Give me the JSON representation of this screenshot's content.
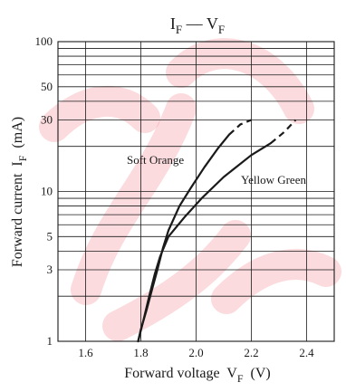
{
  "chart_data": {
    "type": "line",
    "title": {
      "main": "I",
      "main_sub": "F",
      "sep": " — ",
      "second": "V",
      "second_sub": "F"
    },
    "xlabel": {
      "text": "Forward voltage  V",
      "sub": "F",
      "unit": "  (V)"
    },
    "ylabel": {
      "text": "Forward current  I",
      "sub": "F",
      "unit": "  (mA)"
    },
    "xlim": [
      1.5,
      2.5
    ],
    "ylim": [
      1,
      100
    ],
    "yscale": "log",
    "grid": true,
    "x_ticks": [
      1.6,
      1.8,
      2.0,
      2.2,
      2.4
    ],
    "x_tick_labels": [
      "1.6",
      "1.8",
      "2.0",
      "2.2",
      "2.4"
    ],
    "y_ticks": [
      1,
      3,
      5,
      10,
      30,
      50,
      100
    ],
    "y_tick_labels": [
      "1",
      "3",
      "5",
      "10",
      "30",
      "50",
      "100"
    ],
    "series": [
      {
        "name": "Soft Orange",
        "points": [
          [
            1.79,
            1
          ],
          [
            1.8,
            1.2
          ],
          [
            1.82,
            1.6
          ],
          [
            1.84,
            2.2
          ],
          [
            1.86,
            3
          ],
          [
            1.88,
            4.2
          ],
          [
            1.9,
            5.5
          ],
          [
            1.94,
            8
          ],
          [
            1.98,
            10.5
          ],
          [
            2.03,
            14.5
          ],
          [
            2.08,
            19.5
          ],
          [
            2.12,
            24
          ]
        ],
        "dashed_points": [
          [
            2.12,
            24
          ],
          [
            2.16,
            28
          ],
          [
            2.2,
            30
          ]
        ]
      },
      {
        "name": "Yellow Green",
        "points": [
          [
            1.79,
            1
          ],
          [
            1.81,
            1.4
          ],
          [
            1.83,
            2
          ],
          [
            1.85,
            2.8
          ],
          [
            1.87,
            3.7
          ],
          [
            1.9,
            5
          ],
          [
            1.96,
            6.8
          ],
          [
            2.02,
            9
          ],
          [
            2.1,
            12.5
          ],
          [
            2.2,
            17.5
          ],
          [
            2.27,
            21
          ]
        ],
        "dashed_points": [
          [
            2.27,
            21
          ],
          [
            2.32,
            25
          ],
          [
            2.36,
            30
          ]
        ]
      }
    ],
    "colors": {
      "watermark": "#e60012",
      "ink": "#1a1a1a"
    }
  }
}
